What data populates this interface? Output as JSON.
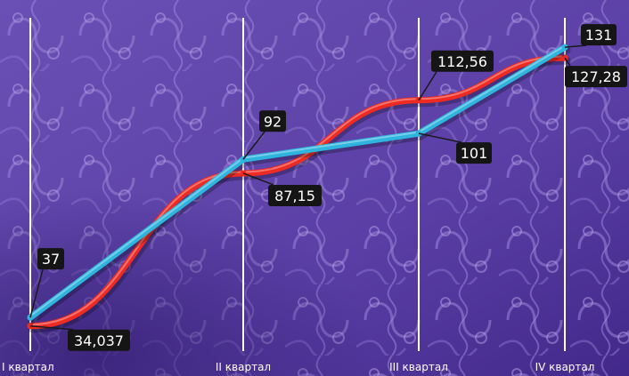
{
  "chart_data": {
    "type": "line",
    "categories": [
      "I квартал",
      "II квартал",
      "III квартал",
      "IV квартал"
    ],
    "series": [
      {
        "values": [
          37,
          92,
          101,
          131
        ],
        "color": "#2fb4dd",
        "labels": [
          "37",
          "92",
          "101",
          "131"
        ]
      },
      {
        "values": [
          34.037,
          87.15,
          112.56,
          127.28
        ],
        "color": "#ee2b22",
        "labels": [
          "34,037",
          "87,15",
          "112,56",
          "127,28"
        ]
      }
    ],
    "ylim": [
      25,
      140
    ],
    "grid": "vertical",
    "background_color": "#5a3fa0"
  }
}
